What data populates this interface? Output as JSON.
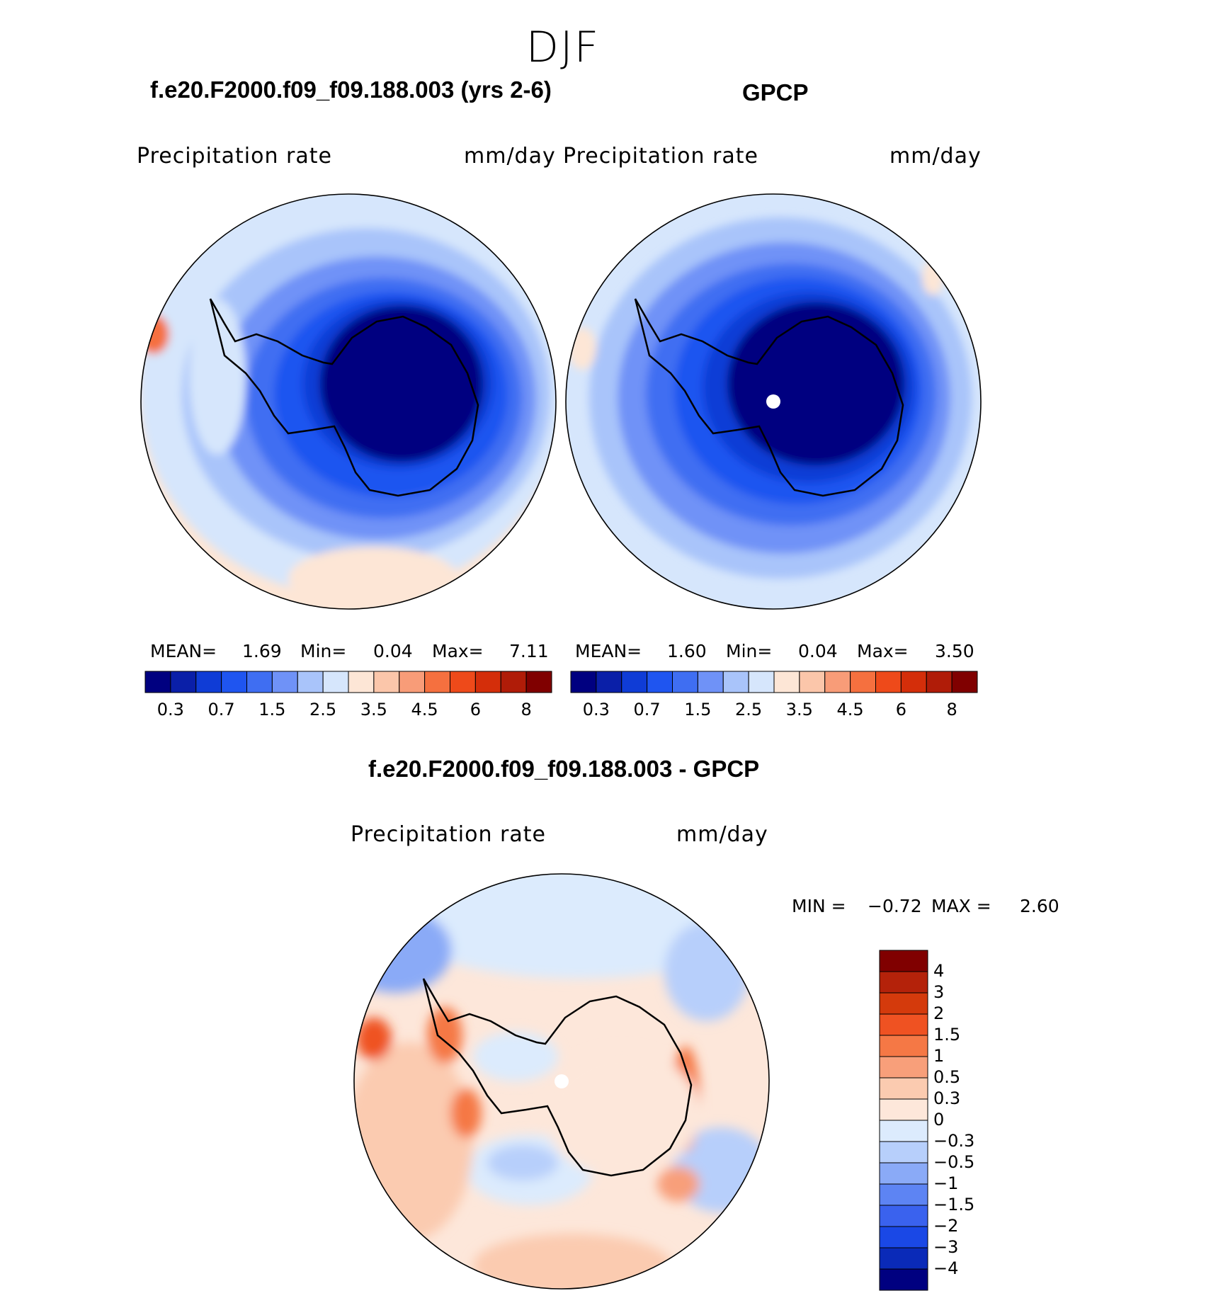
{
  "title": "DJF",
  "panels": {
    "model": {
      "title": "f.e20.F2000.f09_f09.188.003 (yrs 2-6)",
      "variable": "Precipitation rate",
      "units": "mm/day",
      "mean_label": "MEAN=",
      "mean": "1.69",
      "min_label": "Min=",
      "min": "0.04",
      "max_label": "Max=",
      "max": "7.11"
    },
    "obs": {
      "title": "GPCP",
      "variable": "Precipitation rate",
      "units": "mm/day",
      "mean_label": "MEAN=",
      "mean": "1.60",
      "min_label": "Min=",
      "min": "0.04",
      "max_label": "Max=",
      "max": "3.50"
    },
    "diff": {
      "title": "f.e20.F2000.f09_f09.188.003 - GPCP",
      "variable": "Precipitation rate",
      "units": "mm/day",
      "min_label": "MIN =",
      "min": "−0.72",
      "max_label": "MAX =",
      "max": "2.60"
    }
  },
  "colorbar_abs": {
    "colors": [
      "#000080",
      "#0a1fa8",
      "#0f3cd6",
      "#1f55f0",
      "#3f6ef2",
      "#6f92f7",
      "#a9c4fa",
      "#d6e6fc",
      "#fde6d6",
      "#fbc6aa",
      "#f89c78",
      "#f5703f",
      "#ee4a1a",
      "#d42e0a",
      "#b01c08",
      "#800000"
    ],
    "tick_labels": [
      "0.3",
      "0.7",
      "1.5",
      "2.5",
      "3.5",
      "4.5",
      "6",
      "8"
    ]
  },
  "colorbar_diff": {
    "colors": [
      "#000080",
      "#0a2ab8",
      "#1a48e6",
      "#3a62ee",
      "#5d84f3",
      "#8aaaf7",
      "#b7cffb",
      "#dcebfd",
      "#fde7da",
      "#fbcbb0",
      "#f89f7a",
      "#f57845",
      "#ef5222",
      "#d43a0c",
      "#b4220a",
      "#800000"
    ],
    "tick_labels": [
      "4",
      "3",
      "2",
      "1.5",
      "1",
      "0.5",
      "0.3",
      "0",
      "−0.3",
      "−0.5",
      "−1",
      "−1.5",
      "−2",
      "−3",
      "−4"
    ]
  }
}
